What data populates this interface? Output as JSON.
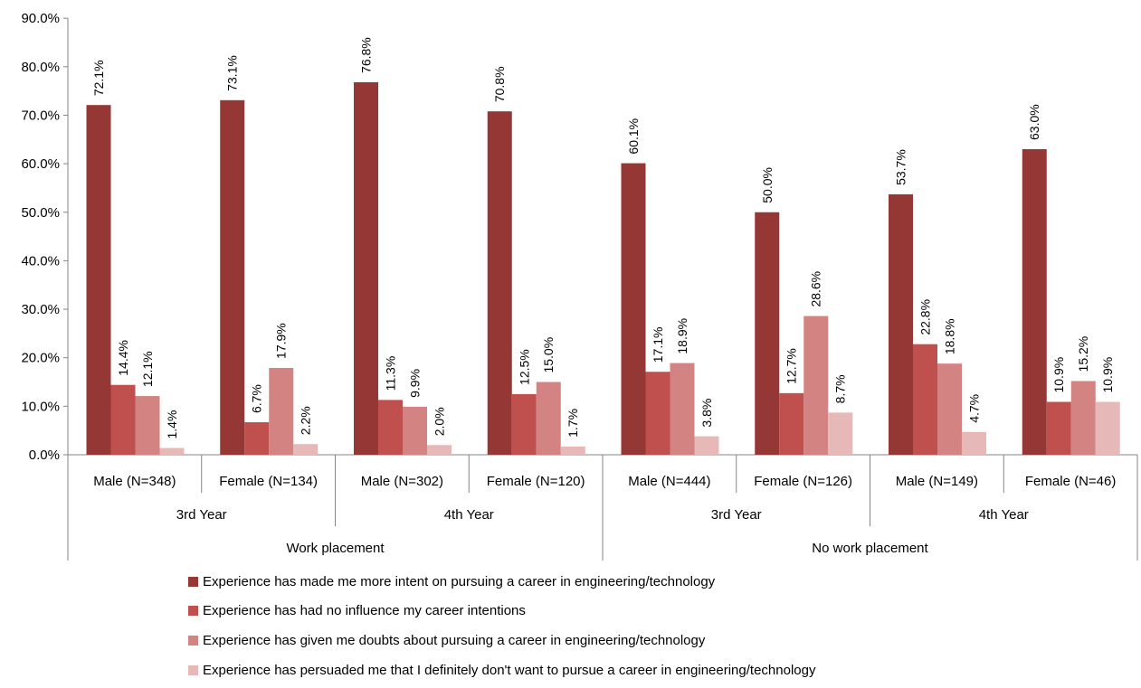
{
  "chart_data": {
    "type": "bar",
    "groups": [
      {
        "label": "Work placement",
        "years": [
          {
            "label": "3rd Year",
            "categories": [
              "Male (N=348)",
              "Female (N=134)"
            ]
          },
          {
            "label": "4th Year",
            "categories": [
              "Male (N=302)",
              "Female (N=120)"
            ]
          }
        ]
      },
      {
        "label": "No work placement",
        "years": [
          {
            "label": "3rd Year",
            "categories": [
              "Male (N=444)",
              "Female (N=126)"
            ]
          },
          {
            "label": "4th Year",
            "categories": [
              "Male (N=149)",
              "Female (N=46)"
            ]
          }
        ]
      }
    ],
    "categories": [
      "Male (N=348)",
      "Female (N=134)",
      "Male (N=302)",
      "Female (N=120)",
      "Male (N=444)",
      "Female (N=126)",
      "Male (N=149)",
      "Female (N=46)"
    ],
    "series": [
      {
        "name": "Experience has made me more intent on pursuing a career in engineering/technology",
        "color": "#953735",
        "values": [
          72.1,
          73.1,
          76.8,
          70.8,
          60.1,
          50.0,
          53.7,
          63.0
        ],
        "labels": [
          "72.1%",
          "73.1%",
          "76.8%",
          "70.8%",
          "60.1%",
          "50.0%",
          "53.7%",
          "63.0%"
        ]
      },
      {
        "name": "Experience has had no influence my career intentions",
        "color": "#c0504d",
        "values": [
          14.4,
          6.7,
          11.3,
          12.5,
          17.1,
          12.7,
          22.8,
          10.9
        ],
        "labels": [
          "14.4%",
          "6.7%",
          "11.3%",
          "12.5%",
          "17.1%",
          "12.7%",
          "22.8%",
          "10.9%"
        ]
      },
      {
        "name": "Experience has given me doubts about pursuing a career in  engineering/technology",
        "color": "#d38482",
        "values": [
          12.1,
          17.9,
          9.9,
          15.0,
          18.9,
          28.6,
          18.8,
          15.2
        ],
        "labels": [
          "12.1%",
          "17.9%",
          "9.9%",
          "15.0%",
          "18.9%",
          "28.6%",
          "18.8%",
          "15.2%"
        ]
      },
      {
        "name": "Experience has persuaded me that I definitely don't want to pursue a career in  engineering/technology",
        "color": "#e6b9b8",
        "values": [
          1.4,
          2.2,
          2.0,
          1.7,
          3.8,
          8.7,
          4.7,
          10.9
        ],
        "labels": [
          "1.4%",
          "2.2%",
          "2.0%",
          "1.7%",
          "3.8%",
          "8.7%",
          "4.7%",
          "10.9%"
        ]
      }
    ],
    "yticks": [
      "0.0%",
      "10.0%",
      "20.0%",
      "30.0%",
      "40.0%",
      "50.0%",
      "60.0%",
      "70.0%",
      "80.0%",
      "90.0%"
    ],
    "ylim": [
      0,
      90
    ],
    "grid": false,
    "legend": "bottom"
  }
}
